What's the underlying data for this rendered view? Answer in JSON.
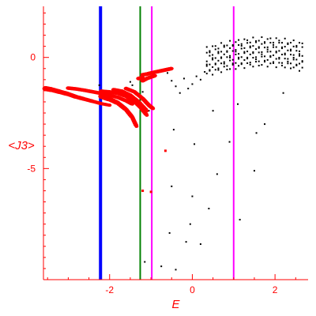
{
  "chart_data": {
    "type": "scatter",
    "title": "",
    "xlabel": "E",
    "ylabel": "<J3>",
    "xlim": [
      -3.6,
      2.8
    ],
    "ylim": [
      -10,
      2.3
    ],
    "x_ticks": [
      -2,
      0,
      2
    ],
    "x_tick_labels": [
      "-2",
      "0",
      "2"
    ],
    "y_ticks": [
      0,
      -5
    ],
    "y_tick_labels": [
      "0",
      "-5"
    ],
    "axis_color": "#ff0000",
    "grid": false,
    "vertical_lines": [
      {
        "x": -2.22,
        "color": "#0000ff",
        "style": "thick"
      },
      {
        "x": -1.26,
        "color": "#008000",
        "style": "medium"
      },
      {
        "x": -0.98,
        "color": "#ff00ff",
        "style": "medium"
      },
      {
        "x": 1.0,
        "color": "#ff00ff",
        "style": "medium"
      }
    ],
    "series": [
      {
        "color": "#ff0000",
        "style": "large-markers",
        "branches": [
          [
            [
              -3.55,
              -1.4
            ],
            [
              -3.4,
              -1.45
            ],
            [
              -3.2,
              -1.55
            ],
            [
              -3.0,
              -1.65
            ],
            [
              -2.8,
              -1.78
            ],
            [
              -2.6,
              -1.88
            ],
            [
              -2.4,
              -1.98
            ],
            [
              -2.2,
              -2.08
            ],
            [
              -2.0,
              -2.15
            ]
          ],
          [
            [
              -2.2,
              -1.75
            ],
            [
              -2.0,
              -1.88
            ],
            [
              -1.8,
              -2.05
            ],
            [
              -1.6,
              -2.35
            ],
            [
              -1.45,
              -2.7
            ],
            [
              -1.35,
              -3.1
            ]
          ],
          [
            [
              -3.0,
              -1.38
            ],
            [
              -2.8,
              -1.42
            ],
            [
              -2.6,
              -1.48
            ],
            [
              -2.4,
              -1.55
            ],
            [
              -2.2,
              -1.62
            ],
            [
              -2.0,
              -1.7
            ],
            [
              -1.8,
              -1.8
            ],
            [
              -1.6,
              -1.95
            ],
            [
              -1.45,
              -2.1
            ]
          ],
          [
            [
              -2.2,
              -1.52
            ],
            [
              -2.0,
              -1.55
            ],
            [
              -1.8,
              -1.62
            ],
            [
              -1.6,
              -1.75
            ],
            [
              -1.4,
              -1.98
            ],
            [
              -1.25,
              -2.25
            ],
            [
              -1.1,
              -2.6
            ]
          ],
          [
            [
              -1.9,
              -1.45
            ],
            [
              -1.7,
              -1.52
            ],
            [
              -1.5,
              -1.7
            ],
            [
              -1.3,
              -2.0
            ],
            [
              -1.1,
              -2.4
            ]
          ],
          [
            [
              -1.6,
              -1.4
            ],
            [
              -1.4,
              -1.55
            ],
            [
              -1.2,
              -1.85
            ],
            [
              -1.05,
              -2.15
            ],
            [
              -0.95,
              -2.3
            ]
          ],
          [
            [
              -1.2,
              -0.78
            ],
            [
              -1.1,
              -0.75
            ],
            [
              -1.0,
              -0.7
            ],
            [
              -0.9,
              -0.66
            ],
            [
              -0.8,
              -0.62
            ],
            [
              -0.7,
              -0.58
            ],
            [
              -0.6,
              -0.54
            ],
            [
              -0.5,
              -0.5
            ]
          ],
          [
            [
              -1.2,
              -1.05
            ],
            [
              -1.1,
              -0.95
            ],
            [
              -1.0,
              -0.88
            ],
            [
              -0.9,
              -0.82
            ]
          ],
          [
            [
              -1.3,
              -0.95
            ],
            [
              -1.2,
              -0.9
            ]
          ]
        ],
        "isolated": [
          [
            -0.65,
            -4.2
          ],
          [
            -1.2,
            -6.0
          ],
          [
            -1.0,
            -6.05
          ]
        ]
      },
      {
        "color": "#000000",
        "style": "small-dots",
        "points": [
          [
            -2.25,
            -1.25
          ],
          [
            -1.75,
            -1.6
          ],
          [
            -1.5,
            -1.1
          ],
          [
            -1.45,
            -1.25
          ],
          [
            -1.2,
            -1.55
          ],
          [
            -1.05,
            -2.4
          ],
          [
            -0.6,
            -0.7
          ],
          [
            -0.5,
            -1.05
          ],
          [
            -0.4,
            -1.3
          ],
          [
            -0.3,
            -1.6
          ],
          [
            -0.2,
            -0.95
          ],
          [
            -0.1,
            -1.4
          ],
          [
            0.0,
            -1.2
          ],
          [
            0.1,
            -0.85
          ],
          [
            0.2,
            -1.0
          ],
          [
            0.3,
            -0.65
          ],
          [
            -0.45,
            -3.25
          ],
          [
            0.05,
            -3.9
          ],
          [
            0.9,
            -3.8
          ],
          [
            1.55,
            -3.4
          ],
          [
            -0.5,
            -5.8
          ],
          [
            0.6,
            -5.25
          ],
          [
            1.5,
            -5.1
          ],
          [
            0.0,
            -6.25
          ],
          [
            0.4,
            -6.8
          ],
          [
            -0.05,
            -7.5
          ],
          [
            1.15,
            -7.3
          ],
          [
            -0.55,
            -7.9
          ],
          [
            -0.15,
            -8.3
          ],
          [
            0.2,
            -8.4
          ],
          [
            -1.15,
            -9.2
          ],
          [
            -0.75,
            -9.4
          ],
          [
            -0.4,
            -9.55
          ],
          [
            1.75,
            -3.0
          ],
          [
            2.2,
            -1.6
          ],
          [
            0.5,
            -2.4
          ],
          [
            1.1,
            -2.1
          ]
        ]
      }
    ]
  }
}
